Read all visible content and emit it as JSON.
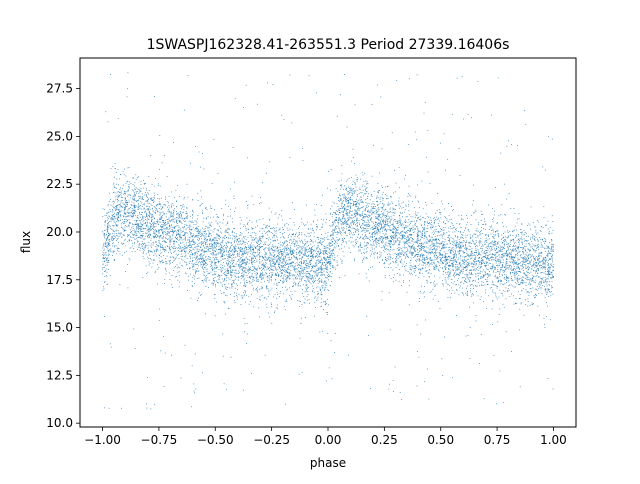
{
  "chart_data": {
    "type": "scatter",
    "title": "1SWASPJ162328.41-263551.3 Period 27339.16406s",
    "xlabel": "phase",
    "ylabel": "flux",
    "xlim": [
      -1.1,
      1.1
    ],
    "ylim": [
      9.8,
      29.1
    ],
    "xticks": [
      -1.0,
      -0.75,
      -0.5,
      -0.25,
      0.0,
      0.25,
      0.5,
      0.75,
      1.0
    ],
    "xtick_labels": [
      "−1.00",
      "−0.75",
      "−0.50",
      "−0.25",
      "0.00",
      "0.25",
      "0.50",
      "0.75",
      "1.00"
    ],
    "yticks": [
      10.0,
      12.5,
      15.0,
      17.5,
      20.0,
      22.5,
      25.0,
      27.5
    ],
    "ytick_labels": [
      "10.0",
      "12.5",
      "15.0",
      "17.5",
      "20.0",
      "22.5",
      "25.0",
      "27.5"
    ],
    "grid": false,
    "marker_color": "#1f77b4",
    "series": [
      {
        "period_phase": 1.0,
        "profile": [
          {
            "x": 0.0,
            "y": 18.4
          },
          {
            "x": 0.02,
            "y": 19.6
          },
          {
            "x": 0.05,
            "y": 20.8
          },
          {
            "x": 0.1,
            "y": 21.1
          },
          {
            "x": 0.15,
            "y": 20.8
          },
          {
            "x": 0.2,
            "y": 20.4
          },
          {
            "x": 0.3,
            "y": 19.9
          },
          {
            "x": 0.4,
            "y": 19.3
          },
          {
            "x": 0.5,
            "y": 18.9
          },
          {
            "x": 0.6,
            "y": 18.6
          },
          {
            "x": 0.7,
            "y": 18.6
          },
          {
            "x": 0.8,
            "y": 18.5
          },
          {
            "x": 0.9,
            "y": 18.4
          },
          {
            "x": 1.0,
            "y": 18.4
          }
        ],
        "scatter_sigma": 1.0,
        "outlier_range": [
          10.7,
          28.4
        ],
        "point_count": 9000
      }
    ]
  }
}
